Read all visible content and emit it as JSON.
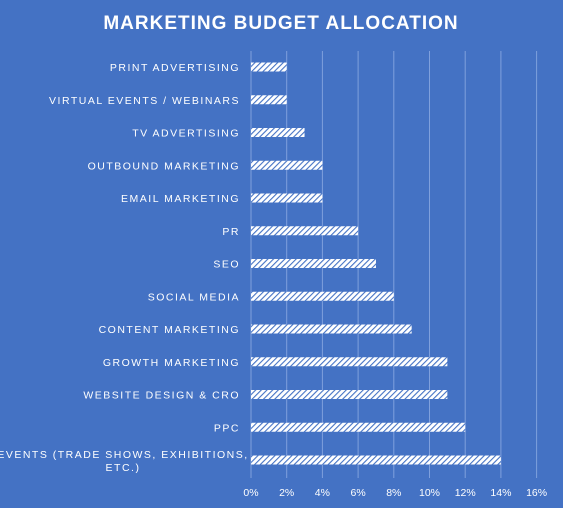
{
  "chart_data": {
    "type": "bar",
    "orientation": "horizontal",
    "title": "MARKETING  BUDGET  ALLOCATION",
    "xlabel": "",
    "ylabel": "",
    "categories": [
      "PRINT ADVERTISING",
      "VIRTUAL EVENTS / WEBINARS",
      "TV ADVERTISING",
      "OUTBOUND MARKETING",
      "EMAIL MARKETING",
      "PR",
      "SEO",
      "SOCIAL MEDIA",
      "CONTENT MARKETING",
      "GROWTH MARKETING",
      "WEBSITE DESIGN & CRO",
      "PPC",
      "EVENTS (TRADE SHOWS, EXHIBITIONS, ETC.)"
    ],
    "category_label_lines": [
      [
        "PRINT ADVERTISING"
      ],
      [
        "VIRTUAL EVENTS / WEBINARS"
      ],
      [
        "TV ADVERTISING"
      ],
      [
        "OUTBOUND MARKETING"
      ],
      [
        "EMAIL MARKETING"
      ],
      [
        "PR"
      ],
      [
        "SEO"
      ],
      [
        "SOCIAL MEDIA"
      ],
      [
        "CONTENT MARKETING"
      ],
      [
        "GROWTH MARKETING"
      ],
      [
        "WEBSITE DESIGN & CRO"
      ],
      [
        "PPC"
      ],
      [
        "EVENTS (TRADE SHOWS, EXHIBITIONS,",
        "ETC.)"
      ]
    ],
    "values": [
      2,
      2,
      3,
      4,
      4,
      6,
      7,
      8,
      9,
      11,
      11,
      12,
      14
    ],
    "xlim": [
      0,
      16
    ],
    "xticks": [
      0,
      2,
      4,
      6,
      8,
      10,
      12,
      14,
      16
    ],
    "xtick_labels": [
      "0%",
      "2%",
      "4%",
      "6%",
      "8%",
      "10%",
      "12%",
      "14%",
      "16%"
    ],
    "grid": true,
    "legend": "none"
  },
  "colors": {
    "background": "#4472c4",
    "bar_fill": "#ffffff",
    "bar_hatch": "#4472c4",
    "text": "#ffffff",
    "gridline": "#7fa0dd"
  }
}
